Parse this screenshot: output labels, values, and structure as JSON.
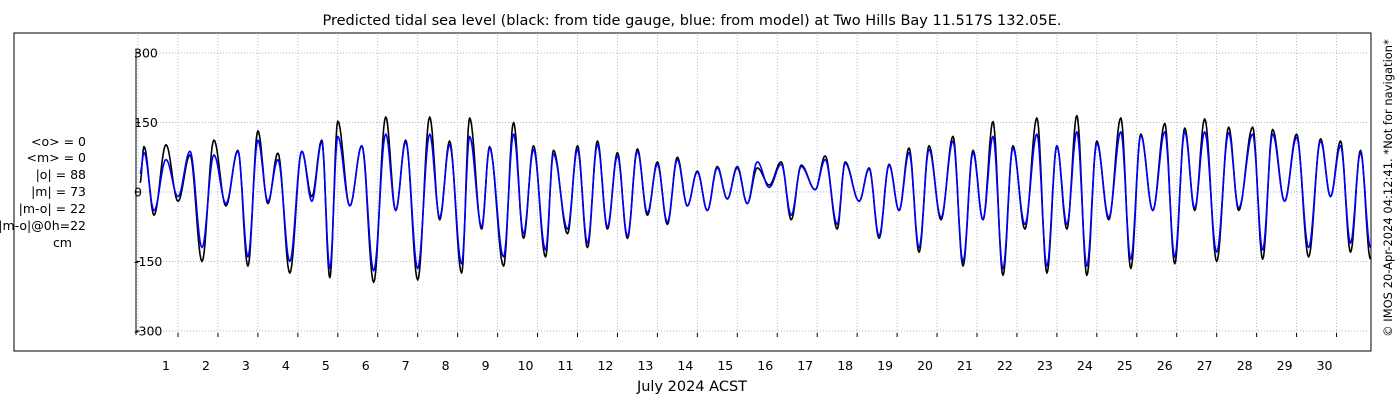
{
  "chart_data": {
    "type": "line",
    "title": "Predicted tidal sea level (black: from tide gauge, blue: from model) at Two Hills Bay 11.517S 132.05E.",
    "xlabel": "July 2024 ACST",
    "ylabel": "",
    "ylim": [
      -300,
      300
    ],
    "xlim": [
      0.3,
      31.2
    ],
    "yticks": [
      300,
      150,
      0,
      -150,
      -300
    ],
    "yticklabels": [
      "300",
      "150",
      "0",
      "-150",
      "-300"
    ],
    "xticks": [
      1,
      2,
      3,
      4,
      5,
      6,
      7,
      8,
      9,
      10,
      11,
      12,
      13,
      14,
      15,
      16,
      17,
      18,
      19,
      20,
      21,
      22,
      23,
      24,
      25,
      26,
      27,
      28,
      29,
      30
    ],
    "xticklabels": [
      "1",
      "2",
      "3",
      "4",
      "5",
      "6",
      "7",
      "8",
      "9",
      "10",
      "11",
      "12",
      "13",
      "14",
      "15",
      "16",
      "17",
      "18",
      "19",
      "20",
      "21",
      "22",
      "23",
      "24",
      "25",
      "26",
      "27",
      "28",
      "29",
      "30"
    ],
    "grid": true,
    "series": [
      {
        "name": "tide gauge",
        "color": "#000000",
        "highs": [
          [
            0.45,
            98
          ],
          [
            1.0,
            102
          ],
          [
            1.6,
            80
          ],
          [
            2.2,
            112
          ],
          [
            2.8,
            90
          ],
          [
            3.3,
            132
          ],
          [
            3.8,
            84
          ],
          [
            4.4,
            88
          ],
          [
            4.9,
            112
          ],
          [
            5.3,
            153
          ],
          [
            5.9,
            100
          ],
          [
            6.5,
            162
          ],
          [
            7.0,
            112
          ],
          [
            7.6,
            162
          ],
          [
            8.1,
            110
          ],
          [
            8.6,
            160
          ],
          [
            9.1,
            98
          ],
          [
            9.7,
            150
          ],
          [
            10.2,
            100
          ],
          [
            10.7,
            90
          ],
          [
            11.3,
            100
          ],
          [
            11.8,
            110
          ],
          [
            12.3,
            85
          ],
          [
            12.8,
            93
          ],
          [
            13.3,
            65
          ],
          [
            13.8,
            75
          ],
          [
            14.3,
            45
          ],
          [
            14.8,
            55
          ],
          [
            15.3,
            55
          ],
          [
            15.8,
            52
          ],
          [
            16.4,
            65
          ],
          [
            16.9,
            58
          ],
          [
            17.5,
            78
          ],
          [
            18.0,
            65
          ],
          [
            18.6,
            52
          ],
          [
            19.1,
            60
          ],
          [
            19.6,
            95
          ],
          [
            20.1,
            100
          ],
          [
            20.7,
            120
          ],
          [
            21.2,
            90
          ],
          [
            21.7,
            152
          ],
          [
            22.2,
            100
          ],
          [
            22.8,
            160
          ],
          [
            23.3,
            100
          ],
          [
            23.8,
            165
          ],
          [
            24.3,
            110
          ],
          [
            24.9,
            160
          ],
          [
            25.4,
            125
          ],
          [
            26.0,
            148
          ],
          [
            26.5,
            138
          ],
          [
            27.0,
            158
          ],
          [
            27.6,
            140
          ],
          [
            28.2,
            140
          ],
          [
            28.7,
            135
          ],
          [
            29.3,
            125
          ],
          [
            29.9,
            115
          ],
          [
            30.4,
            110
          ],
          [
            30.9,
            90
          ]
        ],
        "lows": [
          [
            0.35,
            20
          ],
          [
            0.7,
            -50
          ],
          [
            1.3,
            -20
          ],
          [
            1.9,
            -150
          ],
          [
            2.5,
            -30
          ],
          [
            3.05,
            -160
          ],
          [
            3.55,
            -25
          ],
          [
            4.1,
            -175
          ],
          [
            4.65,
            -10
          ],
          [
            5.1,
            -185
          ],
          [
            5.6,
            -30
          ],
          [
            6.2,
            -195
          ],
          [
            6.75,
            -40
          ],
          [
            7.3,
            -190
          ],
          [
            7.85,
            -60
          ],
          [
            8.4,
            -175
          ],
          [
            8.9,
            -80
          ],
          [
            9.45,
            -160
          ],
          [
            9.95,
            -100
          ],
          [
            10.5,
            -140
          ],
          [
            11.05,
            -90
          ],
          [
            11.55,
            -120
          ],
          [
            12.05,
            -80
          ],
          [
            12.55,
            -100
          ],
          [
            13.05,
            -50
          ],
          [
            13.55,
            -70
          ],
          [
            14.05,
            -30
          ],
          [
            14.55,
            -40
          ],
          [
            15.05,
            -15
          ],
          [
            15.55,
            -25
          ],
          [
            16.1,
            15
          ],
          [
            16.65,
            -60
          ],
          [
            17.25,
            5
          ],
          [
            17.8,
            -80
          ],
          [
            18.35,
            -20
          ],
          [
            18.85,
            -100
          ],
          [
            19.35,
            -40
          ],
          [
            19.85,
            -130
          ],
          [
            20.4,
            -60
          ],
          [
            20.95,
            -160
          ],
          [
            21.45,
            -60
          ],
          [
            21.95,
            -180
          ],
          [
            22.5,
            -80
          ],
          [
            23.05,
            -175
          ],
          [
            23.55,
            -80
          ],
          [
            24.05,
            -180
          ],
          [
            24.6,
            -60
          ],
          [
            25.15,
            -165
          ],
          [
            25.7,
            -40
          ],
          [
            26.25,
            -155
          ],
          [
            26.75,
            -40
          ],
          [
            27.3,
            -150
          ],
          [
            27.85,
            -40
          ],
          [
            28.45,
            -145
          ],
          [
            29.0,
            -20
          ],
          [
            29.6,
            -140
          ],
          [
            30.15,
            -10
          ],
          [
            30.65,
            -130
          ],
          [
            31.15,
            -145
          ]
        ]
      },
      {
        "name": "model",
        "color": "#0000ff",
        "highs": [
          [
            0.45,
            85
          ],
          [
            1.0,
            70
          ],
          [
            1.6,
            88
          ],
          [
            2.2,
            80
          ],
          [
            2.8,
            88
          ],
          [
            3.3,
            112
          ],
          [
            3.8,
            70
          ],
          [
            4.4,
            88
          ],
          [
            4.9,
            108
          ],
          [
            5.3,
            120
          ],
          [
            5.9,
            100
          ],
          [
            6.5,
            125
          ],
          [
            7.0,
            108
          ],
          [
            7.6,
            125
          ],
          [
            8.1,
            102
          ],
          [
            8.6,
            120
          ],
          [
            9.1,
            95
          ],
          [
            9.7,
            125
          ],
          [
            10.2,
            92
          ],
          [
            10.7,
            82
          ],
          [
            11.3,
            92
          ],
          [
            11.8,
            102
          ],
          [
            12.3,
            78
          ],
          [
            12.8,
            88
          ],
          [
            13.3,
            60
          ],
          [
            13.8,
            70
          ],
          [
            14.3,
            43
          ],
          [
            14.8,
            52
          ],
          [
            15.3,
            52
          ],
          [
            15.8,
            65
          ],
          [
            16.4,
            60
          ],
          [
            16.9,
            55
          ],
          [
            17.5,
            70
          ],
          [
            18.0,
            62
          ],
          [
            18.6,
            50
          ],
          [
            19.1,
            58
          ],
          [
            19.6,
            85
          ],
          [
            20.1,
            92
          ],
          [
            20.7,
            110
          ],
          [
            21.2,
            85
          ],
          [
            21.7,
            120
          ],
          [
            22.2,
            95
          ],
          [
            22.8,
            125
          ],
          [
            23.3,
            100
          ],
          [
            23.8,
            130
          ],
          [
            24.3,
            105
          ],
          [
            24.9,
            130
          ],
          [
            25.4,
            122
          ],
          [
            26.0,
            130
          ],
          [
            26.5,
            130
          ],
          [
            27.0,
            130
          ],
          [
            27.6,
            128
          ],
          [
            28.2,
            125
          ],
          [
            28.7,
            125
          ],
          [
            29.3,
            118
          ],
          [
            29.9,
            110
          ],
          [
            30.4,
            100
          ],
          [
            30.9,
            85
          ]
        ],
        "lows": [
          [
            0.35,
            40
          ],
          [
            0.7,
            -40
          ],
          [
            1.3,
            -10
          ],
          [
            1.9,
            -120
          ],
          [
            2.5,
            -25
          ],
          [
            3.05,
            -140
          ],
          [
            3.55,
            -20
          ],
          [
            4.1,
            -150
          ],
          [
            4.65,
            -20
          ],
          [
            5.1,
            -165
          ],
          [
            5.6,
            -30
          ],
          [
            6.2,
            -170
          ],
          [
            6.75,
            -40
          ],
          [
            7.3,
            -165
          ],
          [
            7.85,
            -55
          ],
          [
            8.4,
            -155
          ],
          [
            8.9,
            -75
          ],
          [
            9.45,
            -140
          ],
          [
            9.95,
            -90
          ],
          [
            10.5,
            -125
          ],
          [
            11.05,
            -80
          ],
          [
            11.55,
            -110
          ],
          [
            12.05,
            -75
          ],
          [
            12.55,
            -95
          ],
          [
            13.05,
            -45
          ],
          [
            13.55,
            -65
          ],
          [
            14.05,
            -30
          ],
          [
            14.55,
            -40
          ],
          [
            15.05,
            -15
          ],
          [
            15.55,
            -25
          ],
          [
            16.1,
            10
          ],
          [
            16.65,
            -50
          ],
          [
            17.25,
            5
          ],
          [
            17.8,
            -70
          ],
          [
            18.35,
            -20
          ],
          [
            18.85,
            -95
          ],
          [
            19.35,
            -40
          ],
          [
            19.85,
            -120
          ],
          [
            20.4,
            -55
          ],
          [
            20.95,
            -150
          ],
          [
            21.45,
            -60
          ],
          [
            21.95,
            -165
          ],
          [
            22.5,
            -70
          ],
          [
            23.05,
            -160
          ],
          [
            23.55,
            -70
          ],
          [
            24.05,
            -160
          ],
          [
            24.6,
            -55
          ],
          [
            25.15,
            -145
          ],
          [
            25.7,
            -40
          ],
          [
            26.25,
            -140
          ],
          [
            26.75,
            -35
          ],
          [
            27.3,
            -130
          ],
          [
            27.85,
            -35
          ],
          [
            28.45,
            -125
          ],
          [
            29.0,
            -20
          ],
          [
            29.6,
            -120
          ],
          [
            30.15,
            -10
          ],
          [
            30.65,
            -110
          ],
          [
            31.15,
            -120
          ]
        ]
      }
    ],
    "stats": [
      "<o> = 0",
      "<m> = 0",
      "|o| = 88",
      "|m| = 73",
      "|m-o| = 22",
      "|m-o|@0h=22",
      "cm"
    ],
    "watermark": "© IMOS 20-Apr-2024 04:12:41. *Not for navigation*"
  }
}
